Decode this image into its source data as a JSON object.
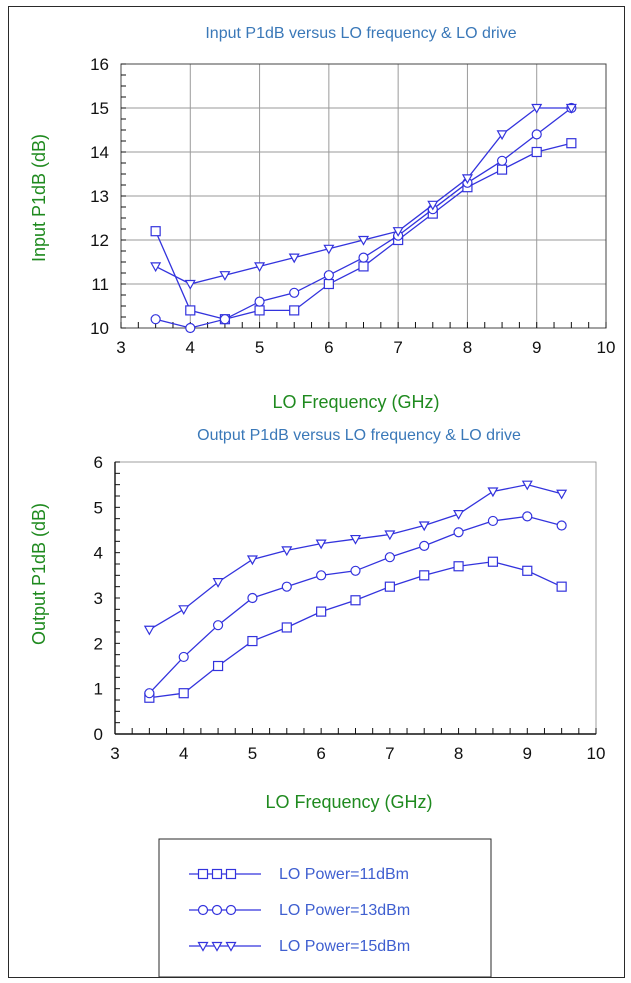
{
  "colors": {
    "series": "#3333dd",
    "axis_label": "#1f8a1f",
    "title": "#3a78b8",
    "frame": "#2a2a2a"
  },
  "chart_data": [
    {
      "type": "line",
      "title": "Input P1dB versus LO frequency & LO drive",
      "xlabel": "LO Frequency (GHz)",
      "ylabel": "Input P1dB (dB)",
      "xlim": [
        3,
        10
      ],
      "ylim": [
        10,
        16
      ],
      "xticks": [
        3,
        4,
        5,
        6,
        7,
        8,
        9,
        10
      ],
      "yticks": [
        10,
        11,
        12,
        13,
        14,
        15,
        16
      ],
      "grid": true,
      "x": [
        3.5,
        4,
        4.5,
        5,
        5.5,
        6,
        6.5,
        7,
        7.5,
        8,
        8.5,
        9,
        9.5
      ],
      "series": [
        {
          "name": "LO Power=11dBm",
          "marker": "square",
          "values": [
            12.2,
            10.4,
            10.2,
            10.4,
            10.4,
            11.0,
            11.4,
            12.0,
            12.6,
            13.2,
            13.6,
            14.0,
            14.2
          ]
        },
        {
          "name": "LO Power=13dBm",
          "marker": "circle",
          "values": [
            10.2,
            10.0,
            10.2,
            10.6,
            10.8,
            11.2,
            11.6,
            12.1,
            12.7,
            13.3,
            13.8,
            14.4,
            15.0
          ]
        },
        {
          "name": "LO Power=15dBm",
          "marker": "triangle",
          "values": [
            11.4,
            11.0,
            11.2,
            11.4,
            11.6,
            11.8,
            12.0,
            12.2,
            12.8,
            13.4,
            14.4,
            15.0,
            15.0
          ]
        }
      ]
    },
    {
      "type": "line",
      "title": "Output P1dB versus LO frequency & LO drive",
      "xlabel": "LO Frequency (GHz)",
      "ylabel": "Output P1dB (dB)",
      "xlim": [
        3,
        10
      ],
      "ylim": [
        0,
        6
      ],
      "xticks": [
        3,
        4,
        5,
        6,
        7,
        8,
        9,
        10
      ],
      "yticks": [
        0,
        1,
        2,
        3,
        4,
        5,
        6
      ],
      "grid": false,
      "x": [
        3.5,
        4,
        4.5,
        5,
        5.5,
        6,
        6.5,
        7,
        7.5,
        8,
        8.5,
        9,
        9.5
      ],
      "series": [
        {
          "name": "LO Power=11dBm",
          "marker": "square",
          "values": [
            0.8,
            0.9,
            1.5,
            2.05,
            2.35,
            2.7,
            2.95,
            3.25,
            3.5,
            3.7,
            3.8,
            3.6,
            3.25
          ]
        },
        {
          "name": "LO Power=13dBm",
          "marker": "circle",
          "values": [
            0.9,
            1.7,
            2.4,
            3.0,
            3.25,
            3.5,
            3.6,
            3.9,
            4.15,
            4.45,
            4.7,
            4.8,
            4.6
          ]
        },
        {
          "name": "LO Power=15dBm",
          "marker": "triangle",
          "values": [
            2.3,
            2.75,
            3.35,
            3.85,
            4.05,
            4.2,
            4.3,
            4.4,
            4.6,
            4.85,
            5.35,
            5.5,
            5.3
          ]
        }
      ]
    }
  ],
  "legend": {
    "entries": [
      {
        "label": "LO Power=11dBm",
        "marker": "square"
      },
      {
        "label": "LO Power=13dBm",
        "marker": "circle"
      },
      {
        "label": "LO Power=15dBm",
        "marker": "triangle"
      }
    ]
  }
}
